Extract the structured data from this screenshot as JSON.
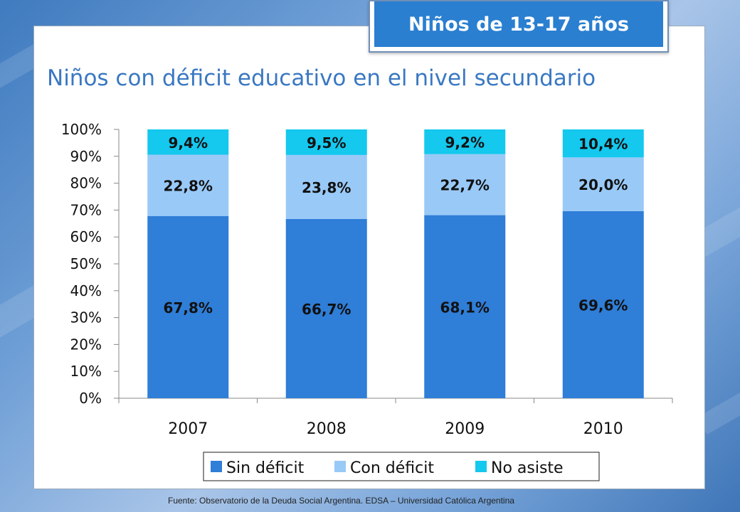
{
  "badge": "Niños de 13-17 años",
  "title": "Niños con déficit educativo en el nivel secundario",
  "footer": "Fuente: Observatorio de la Deuda Social Argentina. EDSA – Universidad Católica Argentina",
  "colors": {
    "sin_deficit": "#2f7ed8",
    "con_deficit": "#99c9f7",
    "no_asiste": "#14c8ee",
    "title": "#3a78c2",
    "badge": "#2a7fd0"
  },
  "chart_data": {
    "type": "bar",
    "stacked": true,
    "categories": [
      "2007",
      "2008",
      "2009",
      "2010"
    ],
    "series": [
      {
        "name": "Sin déficit",
        "values": [
          67.8,
          66.7,
          68.1,
          69.6
        ],
        "labels": [
          "67,8%",
          "66,7%",
          "68,1%",
          "69,6%"
        ]
      },
      {
        "name": "Con déficit",
        "values": [
          22.8,
          23.8,
          22.7,
          20.0
        ],
        "labels": [
          "22,8%",
          "23,8%",
          "22,7%",
          "20,0%"
        ]
      },
      {
        "name": "No asiste",
        "values": [
          9.4,
          9.5,
          9.2,
          10.4
        ],
        "labels": [
          "9,4%",
          "9,5%",
          "9,2%",
          "10,4%"
        ]
      }
    ],
    "yticks": [
      "0%",
      "10%",
      "20%",
      "30%",
      "40%",
      "50%",
      "60%",
      "70%",
      "80%",
      "90%",
      "100%"
    ],
    "ylim": [
      0,
      100
    ],
    "legend_position": "bottom",
    "grid": false
  }
}
